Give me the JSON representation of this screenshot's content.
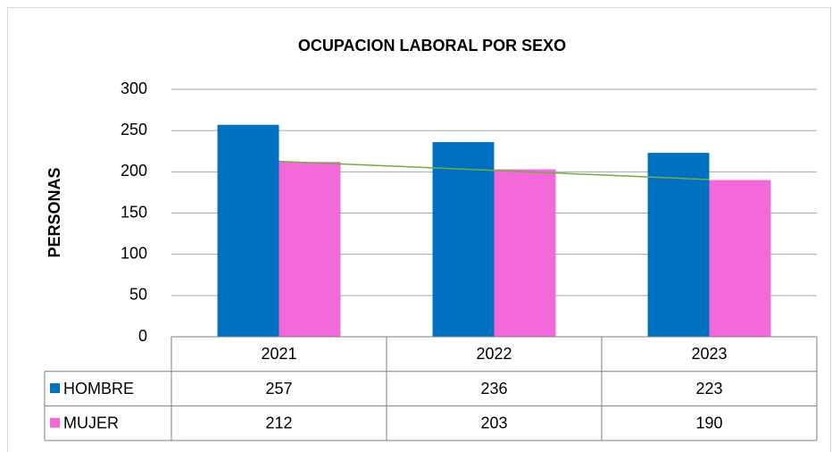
{
  "chart_data": {
    "type": "bar",
    "title": "OCUPACION LABORAL POR SEXO",
    "y_label": "PERSONAS",
    "categories": [
      "2021",
      "2022",
      "2023"
    ],
    "series": [
      {
        "name": "HOMBRE",
        "color": "#0070c0",
        "values": [
          257,
          236,
          223
        ]
      },
      {
        "name": "MUJER",
        "color": "#f469d9",
        "values": [
          212,
          203,
          190
        ],
        "trendline": {
          "type": "linear",
          "color": "#70ad47"
        }
      }
    ],
    "ylim": [
      0,
      300
    ],
    "yticks": [
      0,
      50,
      100,
      150,
      200,
      250,
      300
    ],
    "grid": true,
    "data_table": true
  }
}
